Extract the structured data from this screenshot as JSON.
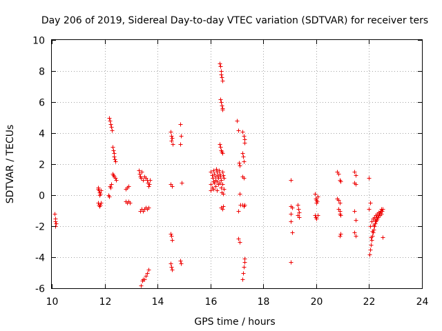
{
  "chart_data": {
    "type": "scatter",
    "title": "Day 206 of 2019, Sidereal Day-to-day VTEC variation (SDTVAR) for receiver ters",
    "xlabel": "GPS time / hours",
    "ylabel": "SDTVAR / TECUs",
    "xlim": [
      10,
      24
    ],
    "ylim": [
      -6,
      10
    ],
    "xticks": [
      10,
      12,
      14,
      16,
      18,
      20,
      22,
      24
    ],
    "yticks": [
      -6,
      -4,
      -2,
      0,
      2,
      4,
      6,
      8,
      10
    ],
    "xtick_labels": [
      "10",
      "12",
      "14",
      "16",
      "18",
      "20",
      "22",
      "24"
    ],
    "ytick_labels": [
      "-6",
      "-4",
      "-2",
      "0",
      "2",
      "4",
      "6",
      "8",
      "10"
    ],
    "grid": true,
    "marker": "+",
    "series": [
      {
        "name": "SDTVAR",
        "color": "#ee0000",
        "points": [
          [
            10.1,
            -1.2
          ],
          [
            10.12,
            -1.5
          ],
          [
            10.13,
            -1.7
          ],
          [
            10.15,
            -1.8
          ],
          [
            10.12,
            -2.0
          ],
          [
            11.75,
            0.4
          ],
          [
            11.78,
            0.3
          ],
          [
            11.8,
            0.2
          ],
          [
            11.82,
            0.1
          ],
          [
            11.76,
            0.5
          ],
          [
            11.79,
            0.0
          ],
          [
            11.85,
            0.3
          ],
          [
            11.75,
            -0.5
          ],
          [
            11.78,
            -0.6
          ],
          [
            11.8,
            -0.7
          ],
          [
            11.82,
            -0.6
          ],
          [
            11.85,
            -0.5
          ],
          [
            12.15,
            0.0
          ],
          [
            12.18,
            -0.1
          ],
          [
            12.2,
            0.6
          ],
          [
            12.22,
            0.5
          ],
          [
            12.25,
            0.7
          ],
          [
            12.18,
            5.0
          ],
          [
            12.2,
            4.8
          ],
          [
            12.22,
            4.6
          ],
          [
            12.24,
            4.4
          ],
          [
            12.26,
            4.2
          ],
          [
            12.3,
            3.1
          ],
          [
            12.32,
            2.9
          ],
          [
            12.34,
            2.7
          ],
          [
            12.36,
            2.5
          ],
          [
            12.38,
            2.3
          ],
          [
            12.4,
            2.2
          ],
          [
            12.3,
            1.4
          ],
          [
            12.33,
            1.3
          ],
          [
            12.36,
            1.2
          ],
          [
            12.39,
            1.1
          ],
          [
            12.42,
            1.0
          ],
          [
            12.8,
            0.4
          ],
          [
            12.85,
            0.5
          ],
          [
            12.9,
            0.6
          ],
          [
            12.8,
            -0.4
          ],
          [
            12.85,
            -0.5
          ],
          [
            12.9,
            -0.4
          ],
          [
            12.95,
            -0.5
          ],
          [
            13.3,
            1.6
          ],
          [
            13.32,
            1.4
          ],
          [
            13.35,
            1.2
          ],
          [
            13.38,
            1.1
          ],
          [
            13.4,
            1.5
          ],
          [
            13.45,
            1.0
          ],
          [
            13.5,
            1.2
          ],
          [
            13.55,
            1.1
          ],
          [
            13.6,
            1.0
          ],
          [
            13.62,
            0.8
          ],
          [
            13.65,
            0.6
          ],
          [
            13.68,
            0.7
          ],
          [
            13.7,
            1.0
          ],
          [
            13.35,
            -1.0
          ],
          [
            13.4,
            -0.9
          ],
          [
            13.45,
            -1.0
          ],
          [
            13.5,
            -0.9
          ],
          [
            13.55,
            -0.8
          ],
          [
            13.6,
            -0.9
          ],
          [
            13.65,
            -0.8
          ],
          [
            13.38,
            -5.8
          ],
          [
            13.42,
            -5.5
          ],
          [
            13.45,
            -5.4
          ],
          [
            13.5,
            -5.4
          ],
          [
            13.55,
            -5.2
          ],
          [
            13.6,
            -5.0
          ],
          [
            13.65,
            -4.8
          ],
          [
            14.5,
            4.1
          ],
          [
            14.52,
            3.8
          ],
          [
            14.55,
            3.7
          ],
          [
            14.53,
            3.5
          ],
          [
            14.58,
            3.3
          ],
          [
            14.5,
            0.7
          ],
          [
            14.55,
            0.6
          ],
          [
            14.5,
            -2.5
          ],
          [
            14.52,
            -2.6
          ],
          [
            14.55,
            -2.9
          ],
          [
            14.5,
            -4.4
          ],
          [
            14.52,
            -4.6
          ],
          [
            14.55,
            -4.8
          ],
          [
            14.85,
            4.6
          ],
          [
            14.88,
            3.8
          ],
          [
            14.85,
            3.3
          ],
          [
            14.9,
            0.8
          ],
          [
            14.85,
            -4.2
          ],
          [
            14.88,
            -4.4
          ],
          [
            16.0,
            1.5
          ],
          [
            16.05,
            1.3
          ],
          [
            16.08,
            1.1
          ],
          [
            16.1,
            0.9
          ],
          [
            16.02,
            0.7
          ],
          [
            16.05,
            0.5
          ],
          [
            16.0,
            0.3
          ],
          [
            16.12,
            1.6
          ],
          [
            16.15,
            1.4
          ],
          [
            16.18,
            1.2
          ],
          [
            16.2,
            1.0
          ],
          [
            16.15,
            0.8
          ],
          [
            16.2,
            0.6
          ],
          [
            16.1,
            0.4
          ],
          [
            16.22,
            1.7
          ],
          [
            16.25,
            1.5
          ],
          [
            16.28,
            1.3
          ],
          [
            16.3,
            1.1
          ],
          [
            16.25,
            0.9
          ],
          [
            16.3,
            0.7
          ],
          [
            16.25,
            0.3
          ],
          [
            16.32,
            1.6
          ],
          [
            16.35,
            1.4
          ],
          [
            16.38,
            1.2
          ],
          [
            16.4,
            1.0
          ],
          [
            16.35,
            0.8
          ],
          [
            16.4,
            0.5
          ],
          [
            16.42,
            0.2
          ],
          [
            16.45,
            1.5
          ],
          [
            16.48,
            1.3
          ],
          [
            16.5,
            1.1
          ],
          [
            16.45,
            0.7
          ],
          [
            16.5,
            0.4
          ],
          [
            16.48,
            0.1
          ],
          [
            16.35,
            8.5
          ],
          [
            16.37,
            8.3
          ],
          [
            16.39,
            8.0
          ],
          [
            16.41,
            7.8
          ],
          [
            16.43,
            7.6
          ],
          [
            16.45,
            7.4
          ],
          [
            16.38,
            6.2
          ],
          [
            16.4,
            6.0
          ],
          [
            16.42,
            5.8
          ],
          [
            16.44,
            5.6
          ],
          [
            16.46,
            5.5
          ],
          [
            16.35,
            3.3
          ],
          [
            16.38,
            3.1
          ],
          [
            16.4,
            2.9
          ],
          [
            16.43,
            2.8
          ],
          [
            16.46,
            2.7
          ],
          [
            16.4,
            -0.8
          ],
          [
            16.45,
            -0.9
          ],
          [
            16.48,
            -0.7
          ],
          [
            17.0,
            4.8
          ],
          [
            17.05,
            4.2
          ],
          [
            17.08,
            2.1
          ],
          [
            17.1,
            1.9
          ],
          [
            17.1,
            0.1
          ],
          [
            17.12,
            -0.6
          ],
          [
            17.05,
            -1.0
          ],
          [
            17.05,
            -2.8
          ],
          [
            17.1,
            -3.0
          ],
          [
            17.2,
            4.1
          ],
          [
            17.25,
            3.8
          ],
          [
            17.28,
            3.6
          ],
          [
            17.3,
            3.4
          ],
          [
            17.2,
            2.7
          ],
          [
            17.23,
            2.5
          ],
          [
            17.26,
            2.2
          ],
          [
            17.22,
            1.2
          ],
          [
            17.25,
            1.1
          ],
          [
            17.2,
            -0.6
          ],
          [
            17.25,
            -0.7
          ],
          [
            17.3,
            -0.6
          ],
          [
            17.2,
            -5.4
          ],
          [
            17.23,
            -5.0
          ],
          [
            17.26,
            -4.6
          ],
          [
            17.28,
            -4.3
          ],
          [
            17.3,
            -4.1
          ],
          [
            19.05,
            1.0
          ],
          [
            19.05,
            -0.7
          ],
          [
            19.08,
            -0.8
          ],
          [
            19.05,
            -1.2
          ],
          [
            19.05,
            -1.7
          ],
          [
            19.1,
            -2.4
          ],
          [
            19.05,
            -4.3
          ],
          [
            19.3,
            -0.6
          ],
          [
            19.32,
            -0.9
          ],
          [
            19.35,
            -1.1
          ],
          [
            19.3,
            -1.3
          ],
          [
            19.35,
            -1.4
          ],
          [
            19.95,
            0.1
          ],
          [
            19.98,
            -0.2
          ],
          [
            20.0,
            -0.3
          ],
          [
            20.02,
            -0.4
          ],
          [
            20.05,
            -0.1
          ],
          [
            20.0,
            -0.5
          ],
          [
            19.95,
            -1.3
          ],
          [
            19.98,
            -1.4
          ],
          [
            20.0,
            -1.5
          ],
          [
            20.05,
            -1.3
          ],
          [
            20.8,
            1.5
          ],
          [
            20.85,
            1.4
          ],
          [
            20.9,
            1.0
          ],
          [
            20.92,
            0.9
          ],
          [
            20.8,
            -0.2
          ],
          [
            20.85,
            -0.3
          ],
          [
            20.88,
            -0.5
          ],
          [
            20.85,
            -0.9
          ],
          [
            20.88,
            -1.0
          ],
          [
            20.9,
            -1.2
          ],
          [
            20.92,
            -1.3
          ],
          [
            20.9,
            -2.6
          ],
          [
            20.92,
            -2.5
          ],
          [
            21.45,
            1.5
          ],
          [
            21.5,
            1.3
          ],
          [
            21.45,
            0.8
          ],
          [
            21.5,
            0.7
          ],
          [
            21.45,
            -1.0
          ],
          [
            21.5,
            -1.6
          ],
          [
            21.45,
            -2.4
          ],
          [
            21.5,
            -2.6
          ],
          [
            22.0,
            1.1
          ],
          [
            22.05,
            -0.5
          ],
          [
            22.0,
            -0.9
          ],
          [
            22.02,
            -3.8
          ],
          [
            22.05,
            -3.5
          ],
          [
            22.07,
            -3.2
          ],
          [
            22.1,
            -2.9
          ],
          [
            22.12,
            -2.6
          ],
          [
            22.15,
            -2.4
          ],
          [
            22.17,
            -2.2
          ],
          [
            22.2,
            -2.0
          ],
          [
            22.22,
            -1.8
          ],
          [
            22.25,
            -1.7
          ],
          [
            22.28,
            -1.6
          ],
          [
            22.3,
            -1.5
          ],
          [
            22.32,
            -1.4
          ],
          [
            22.35,
            -1.3
          ],
          [
            22.38,
            -1.2
          ],
          [
            22.4,
            -1.1
          ],
          [
            22.42,
            -1.0
          ],
          [
            22.45,
            -0.9
          ],
          [
            22.05,
            -2.0
          ],
          [
            22.1,
            -1.7
          ],
          [
            22.15,
            -1.5
          ],
          [
            22.2,
            -1.4
          ],
          [
            22.25,
            -1.3
          ],
          [
            22.3,
            -1.2
          ],
          [
            22.08,
            -2.7
          ],
          [
            22.12,
            -2.3
          ],
          [
            22.18,
            -1.9
          ],
          [
            22.22,
            -1.6
          ],
          [
            22.28,
            -1.4
          ],
          [
            22.35,
            -1.1
          ],
          [
            22.4,
            -1.3
          ],
          [
            22.45,
            -1.2
          ],
          [
            22.48,
            -1.0
          ],
          [
            22.5,
            -0.9
          ],
          [
            22.5,
            -2.7
          ]
        ]
      }
    ]
  }
}
